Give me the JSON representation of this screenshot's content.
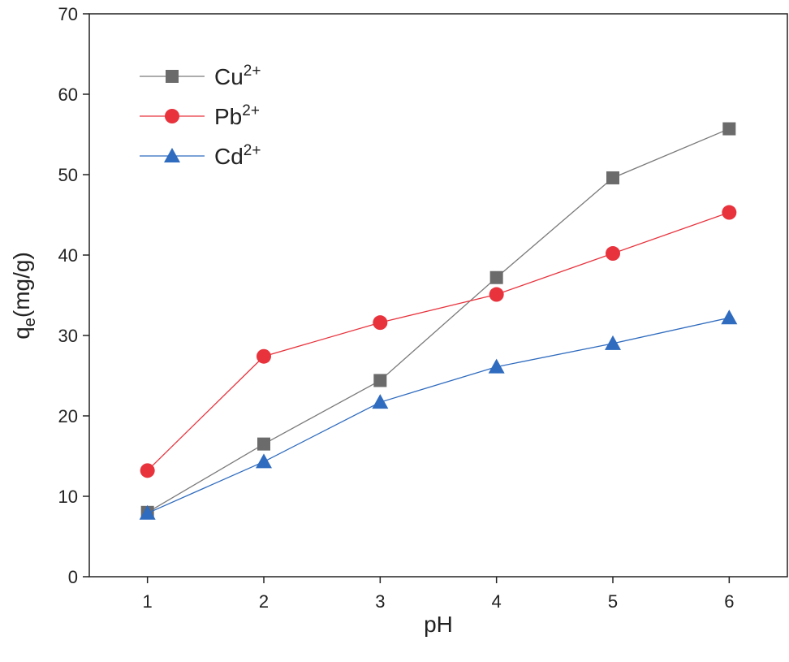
{
  "chart_data": {
    "type": "line",
    "title": "",
    "xlabel": "pH",
    "ylabel_main": "q",
    "ylabel_sub": "e",
    "ylabel_rest": "(mg/g)",
    "ylabel": "qe(mg/g)",
    "x": [
      1,
      2,
      3,
      4,
      5,
      6
    ],
    "xlim": [
      0.5,
      6.5
    ],
    "ylim": [
      0,
      70
    ],
    "xticks": [
      1,
      2,
      3,
      4,
      5,
      6
    ],
    "yticks": [
      0,
      10,
      20,
      30,
      40,
      50,
      60,
      70
    ],
    "grid": false,
    "legend_placement": "top-left",
    "series": [
      {
        "name": "Cu2+",
        "base": "Cu",
        "charge": "2+",
        "color": "#6b6b6b",
        "line_color": "#7a7a7a",
        "marker": "square",
        "values": [
          8.0,
          16.5,
          24.4,
          37.2,
          49.6,
          55.7
        ]
      },
      {
        "name": "Pb2+",
        "base": "Pb",
        "charge": "2+",
        "color": "#e8333d",
        "line_color": "#e8333d",
        "marker": "circle",
        "values": [
          13.2,
          27.4,
          31.6,
          35.1,
          40.2,
          45.3
        ]
      },
      {
        "name": "Cd2+",
        "base": "Cd",
        "charge": "2+",
        "color": "#2f6bbf",
        "line_color": "#2f6bbf",
        "marker": "triangle",
        "values": [
          7.9,
          14.3,
          21.7,
          26.1,
          29.0,
          32.2
        ]
      }
    ]
  }
}
